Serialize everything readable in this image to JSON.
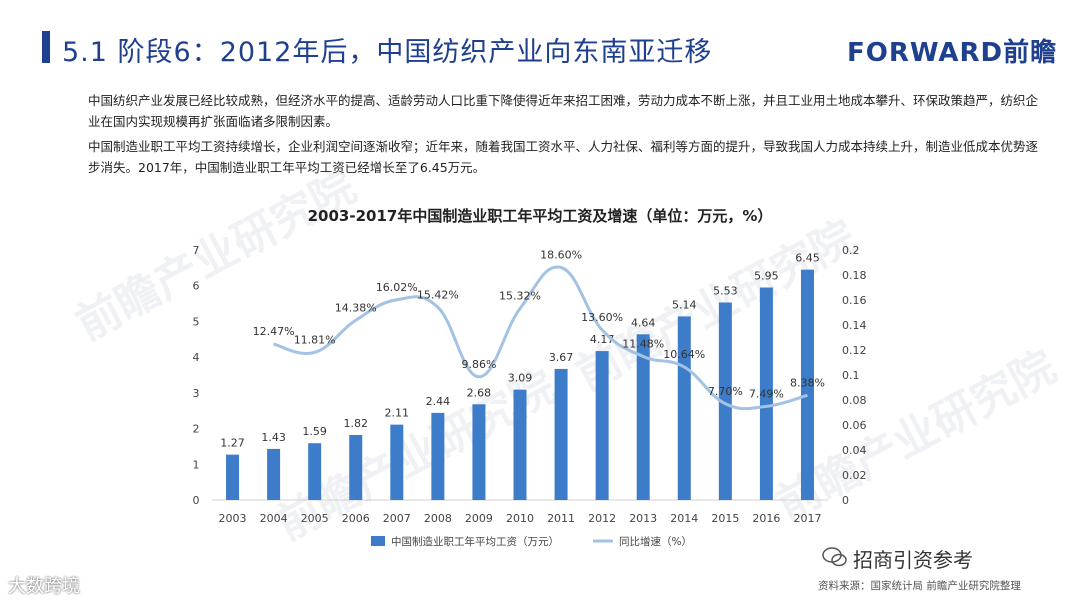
{
  "header": {
    "title": "5.1 阶段6：2012年后，中国纺织产业向东南亚迁移",
    "logo": "FORWARD前瞻"
  },
  "paragraphs": [
    "中国纺织产业发展已经比较成熟，但经济水平的提高、适龄劳动人口比重下降使得近年来招工困难，劳动力成本不断上涨，并且工业用土地成本攀升、环保政策趋严，纺织企业在国内实现规模再扩张面临诸多限制因素。",
    "中国制造业职工平均工资持续增长，企业利润空间逐渐收窄；近年来，随着我国工资水平、人力社保、福利等方面的提升，导致我国人力成本持续上升，制造业低成本优势逐步消失。2017年，中国制造业职工年平均工资已经增长至了6.45万元。"
  ],
  "watermark": "前瞻产业研究院",
  "chart_data": {
    "type": "bar",
    "title": "2003-2017年中国制造业职工年平均工资及增速（单位：万元，%）",
    "categories": [
      "2003",
      "2004",
      "2005",
      "2006",
      "2007",
      "2008",
      "2009",
      "2010",
      "2011",
      "2012",
      "2013",
      "2014",
      "2015",
      "2016",
      "2017"
    ],
    "series": [
      {
        "name": "中国制造业职工年平均工资（万元）",
        "type": "bar",
        "axis": "left",
        "color": "#3d7cc9",
        "values": [
          1.27,
          1.43,
          1.59,
          1.82,
          2.11,
          2.44,
          2.68,
          3.09,
          3.67,
          4.17,
          4.64,
          5.14,
          5.53,
          5.95,
          6.45
        ],
        "labels": [
          "1.27",
          "1.43",
          "1.59",
          "1.82",
          "2.11",
          "2.44",
          "2.68",
          "3.09",
          "3.67",
          "4.17",
          "4.64",
          "5.14",
          "5.53",
          "5.95",
          "6.45"
        ]
      },
      {
        "name": "同比增速（%）",
        "type": "line",
        "axis": "right",
        "color": "#a3c2e4",
        "values": [
          null,
          0.1247,
          0.1181,
          0.1438,
          0.1602,
          0.1542,
          0.0986,
          0.1532,
          0.186,
          0.136,
          0.1148,
          0.1064,
          0.077,
          0.0749,
          0.0838
        ],
        "labels": [
          "",
          "12.47%",
          "11.81%",
          "14.38%",
          "16.02%",
          "15.42%",
          "9.86%",
          "15.32%",
          "18.60%",
          "13.60%",
          "11.48%",
          "10.64%",
          "7.70%",
          "7.49%",
          "8.38%"
        ]
      }
    ],
    "y_left": {
      "min": 0,
      "max": 7,
      "ticks": [
        "0",
        "1",
        "2",
        "3",
        "4",
        "5",
        "6",
        "7"
      ]
    },
    "y_right": {
      "min": 0,
      "max": 0.2,
      "ticks": [
        "0",
        "0.02",
        "0.04",
        "0.06",
        "0.08",
        "0.1",
        "0.12",
        "0.14",
        "0.16",
        "0.18",
        "0.2"
      ]
    },
    "grid": false,
    "legend_position": "bottom"
  },
  "footer": {
    "source": "资料来源：国家统计局  前瞻产业研究院整理",
    "wechat": "招商引资参考",
    "corner": "大数跨境"
  }
}
